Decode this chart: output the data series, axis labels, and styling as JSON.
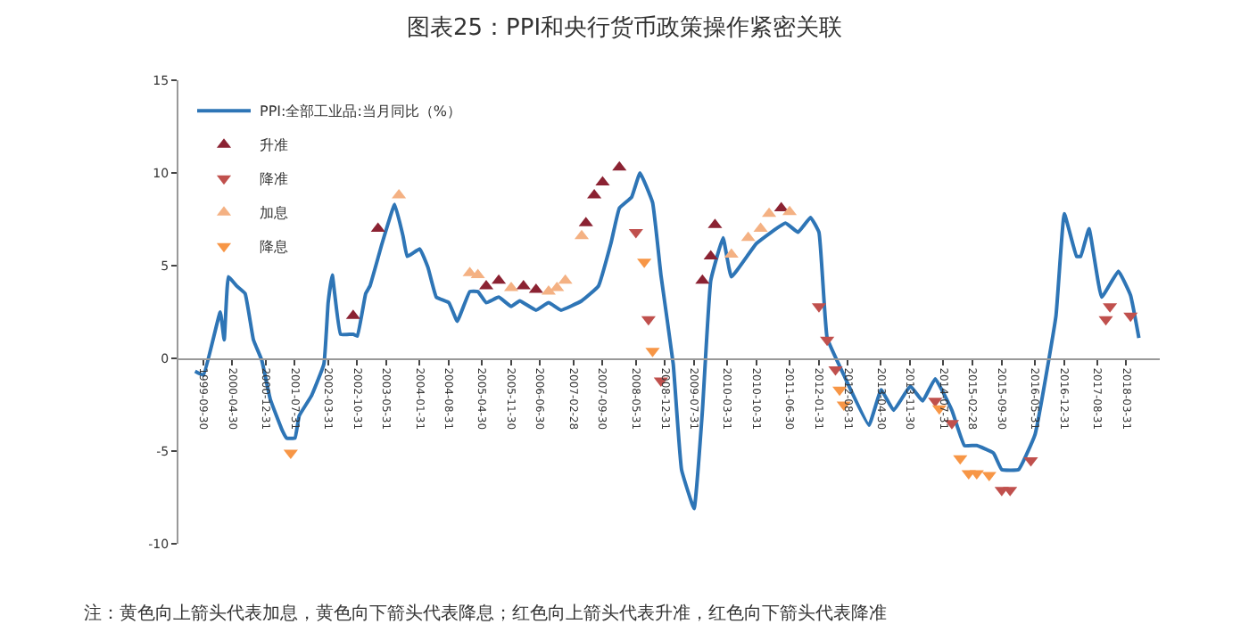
{
  "chart_data": {
    "type": "line",
    "title": "图表25：PPI和央行货币政策操作紧密关联",
    "annotations": [
      "注：黄色向上箭头代表加息，黄色向下箭头代表降息；红色向上箭头代表升准，红色向下箭头代表降准"
    ],
    "xlim": [
      "1999-04",
      "2018-12"
    ],
    "xticks": [
      "1999-09-30",
      "2000-04-30",
      "2000-12-31",
      "2001-07-31",
      "2002-03-31",
      "2002-10-31",
      "2003-05-31",
      "2004-01-31",
      "2004-08-31",
      "2005-04-30",
      "2005-11-30",
      "2006-06-30",
      "2007-02-28",
      "2007-09-30",
      "2008-05-31",
      "2008-12-31",
      "2009-07-31",
      "2010-03-31",
      "2010-10-31",
      "2011-06-30",
      "2012-01-31",
      "2012-08-31",
      "2013-04-30",
      "2013-11-30",
      "2014-07-31",
      "2015-02-28",
      "2015-09-30",
      "2016-05-31",
      "2016-12-31",
      "2017-08-31",
      "2018-03-31"
    ],
    "ylim": [
      -10,
      15
    ],
    "yticks": [
      -10,
      -5,
      0,
      5,
      10,
      15
    ],
    "grid": false,
    "legend": "top left",
    "series": [
      {
        "name": "PPI:全部工业品:当月同比（%）",
        "color": "#2e75b6",
        "marker": "none",
        "x": [
          "1999-08",
          "1999-10",
          "2000-02",
          "2000-03",
          "2000-04",
          "2000-06",
          "2000-08",
          "2000-10",
          "2000-12",
          "2001-02",
          "2001-05",
          "2001-06",
          "2001-08",
          "2001-09",
          "2001-12",
          "2002-03",
          "2002-04",
          "2002-05",
          "2002-07",
          "2002-10",
          "2002-11",
          "2003-01",
          "2003-02",
          "2003-05",
          "2003-08",
          "2003-10",
          "2003-11",
          "2004-02",
          "2004-04",
          "2004-06",
          "2004-09",
          "2004-11",
          "2005-02",
          "2005-04",
          "2005-06",
          "2005-09",
          "2005-12",
          "2006-02",
          "2006-06",
          "2006-09",
          "2006-12",
          "2007-05",
          "2007-09",
          "2007-12",
          "2008-02",
          "2008-05",
          "2008-07",
          "2008-10",
          "2008-12",
          "2009-03",
          "2009-05",
          "2009-08",
          "2009-10",
          "2009-12",
          "2010-03",
          "2010-05",
          "2010-11",
          "2011-06",
          "2011-09",
          "2011-12",
          "2012-02",
          "2012-04",
          "2012-08",
          "2013-02",
          "2013-05",
          "2013-08",
          "2013-12",
          "2014-03",
          "2014-06",
          "2014-10",
          "2015-01",
          "2015-04",
          "2015-08",
          "2015-10",
          "2016-02",
          "2016-06",
          "2016-11",
          "2017-01",
          "2017-04",
          "2017-05",
          "2017-07",
          "2017-10",
          "2018-02",
          "2018-05",
          "2018-07"
        ],
        "values": [
          -0.7,
          -0.9,
          2.5,
          1.0,
          4.4,
          3.9,
          3.5,
          1.0,
          -0.1,
          -2.2,
          -3.9,
          -4.3,
          -4.3,
          -3.1,
          -2.0,
          -0.3,
          3.0,
          4.5,
          1.3,
          1.3,
          1.2,
          3.5,
          3.9,
          6.2,
          8.3,
          6.6,
          5.5,
          5.9,
          4.9,
          3.3,
          3.0,
          2.0,
          3.6,
          3.6,
          3.0,
          3.3,
          2.8,
          3.1,
          2.6,
          3.0,
          2.6,
          3.1,
          3.9,
          6.2,
          8.1,
          8.7,
          10.0,
          8.4,
          4.5,
          -0.3,
          -6.0,
          -8.1,
          -2.8,
          4.2,
          6.5,
          4.4,
          6.2,
          7.3,
          6.8,
          7.6,
          6.8,
          1.1,
          -0.9,
          -3.6,
          -1.7,
          -2.8,
          -1.5,
          -2.3,
          -1.1,
          -2.8,
          -4.7,
          -4.7,
          -5.1,
          -6.0,
          -6.0,
          -4.1,
          2.3,
          7.8,
          5.5,
          5.5,
          7.0,
          3.3,
          4.7,
          3.4,
          1.1
        ]
      },
      {
        "name": "升准",
        "type": "scatter",
        "color": "#8b2232",
        "marker": "triangle-up",
        "x": [
          "2002-10",
          "2003-04",
          "2005-06",
          "2005-09",
          "2006-03",
          "2006-06",
          "2007-06",
          "2007-08",
          "2007-10",
          "2008-02",
          "2009-10",
          "2009-12",
          "2010-01",
          "2011-05"
        ],
        "values": [
          2.3,
          7.0,
          3.9,
          4.2,
          3.9,
          3.7,
          7.3,
          8.8,
          9.5,
          10.3,
          4.2,
          5.5,
          7.2,
          8.1
        ]
      },
      {
        "name": "降准",
        "type": "scatter",
        "color": "#c0504d",
        "marker": "triangle-down",
        "x": [
          "2008-06",
          "2008-09",
          "2008-12",
          "2012-02",
          "2012-04",
          "2012-06",
          "2014-06",
          "2014-10",
          "2015-10",
          "2015-12",
          "2016-05",
          "2017-11",
          "2017-12",
          "2018-05"
        ],
        "values": [
          6.8,
          2.1,
          -1.2,
          2.8,
          1.0,
          -0.6,
          -2.3,
          -3.5,
          -7.1,
          -7.1,
          -5.5,
          2.1,
          2.8,
          2.3
        ]
      },
      {
        "name": "加息",
        "type": "scatter",
        "color": "#f4b183",
        "marker": "triangle-up",
        "x": [
          "2003-09",
          "2005-02",
          "2005-04",
          "2005-12",
          "2006-09",
          "2006-11",
          "2007-01",
          "2007-05",
          "2010-05",
          "2010-09",
          "2010-12",
          "2011-02",
          "2011-07"
        ],
        "values": [
          8.8,
          4.6,
          4.5,
          3.8,
          3.6,
          3.8,
          4.2,
          6.6,
          5.6,
          6.5,
          7.0,
          7.8,
          7.9
        ]
      },
      {
        "name": "降息",
        "type": "scatter",
        "color": "#f79646",
        "marker": "triangle-down",
        "x": [
          "2001-07",
          "2008-08",
          "2008-10",
          "2012-07",
          "2012-08",
          "2014-07",
          "2014-12",
          "2015-02",
          "2015-04",
          "2015-07"
        ],
        "values": [
          -5.1,
          5.2,
          0.4,
          -1.7,
          -2.5,
          -2.7,
          -5.4,
          -6.2,
          -6.2,
          -6.3
        ]
      }
    ]
  }
}
